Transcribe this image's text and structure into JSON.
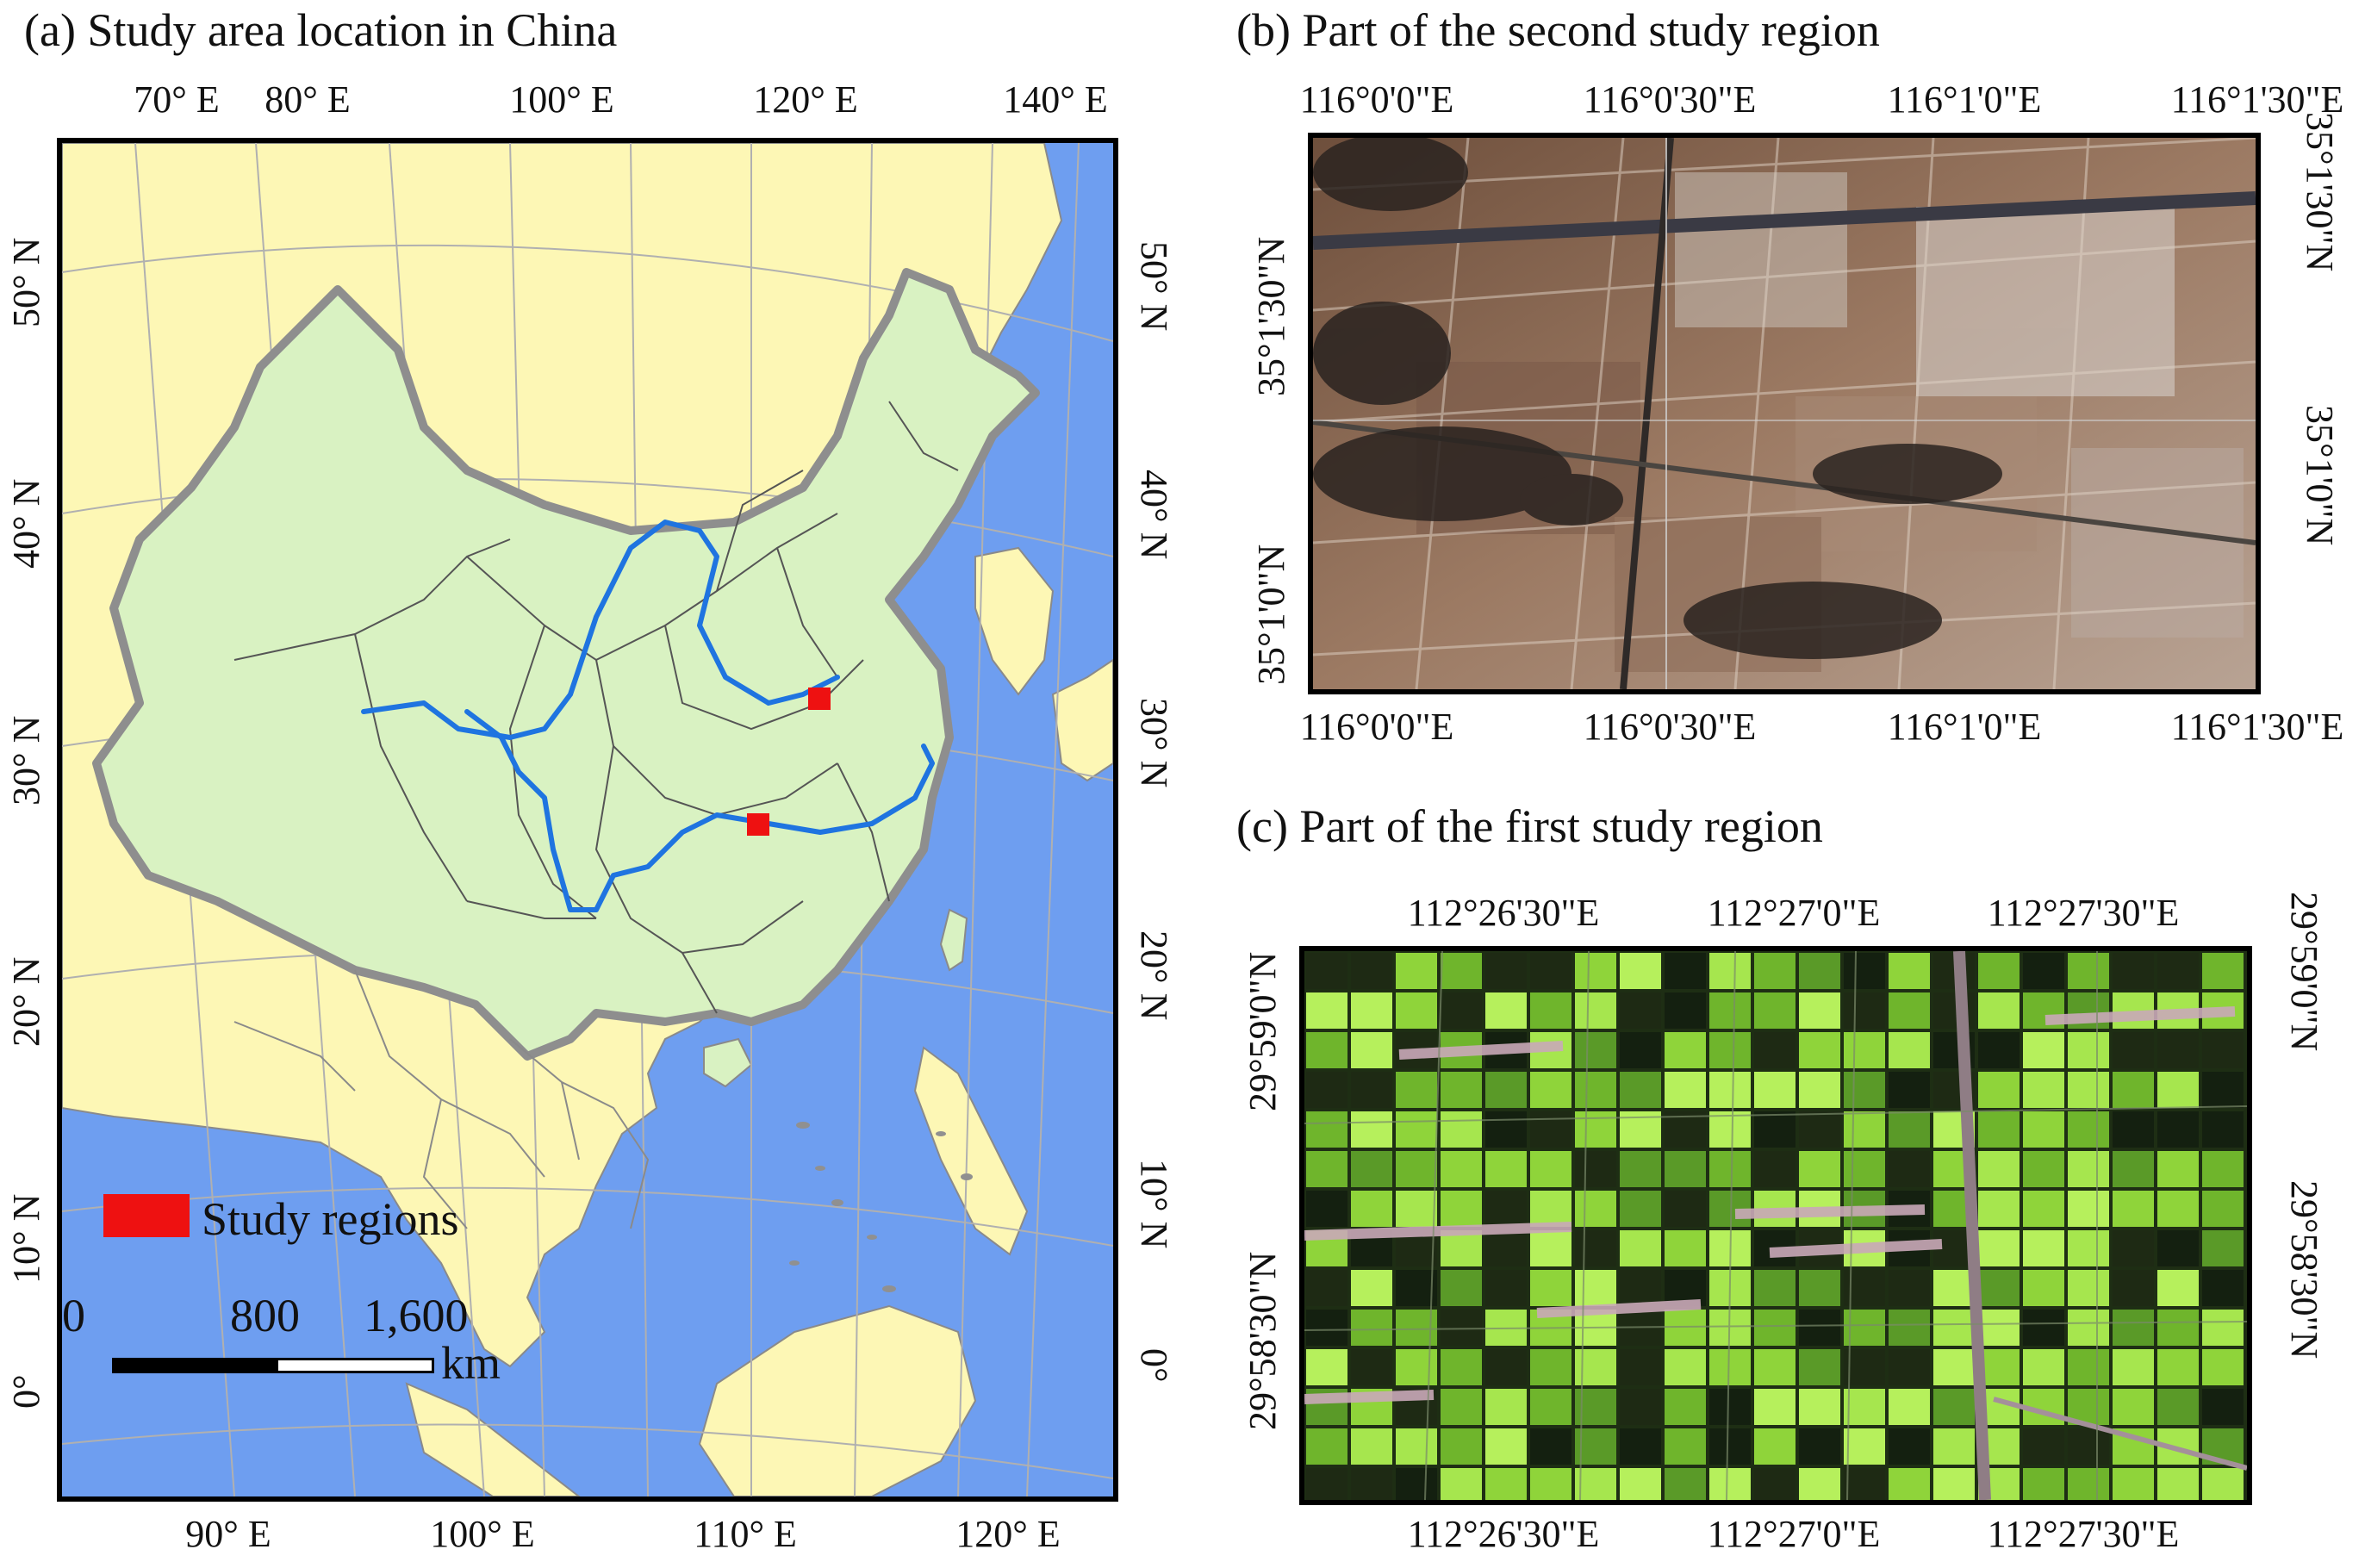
{
  "panel_a": {
    "title": "(a) Study area location in China",
    "top_lon_labels": [
      "70° E",
      "80° E",
      "100° E",
      "120° E",
      "140° E"
    ],
    "bottom_lon_labels": [
      "90° E",
      "100° E",
      "110° E",
      "120° E"
    ],
    "left_lat_labels": [
      "50° N",
      "40° N",
      "30° N",
      "20° N",
      "10° N",
      "0°"
    ],
    "right_lat_labels": [
      "50° N",
      "40° N",
      "30° N",
      "20° N",
      "10° N",
      "0°"
    ],
    "legend_label": "Study regions",
    "scale_labels": [
      "0",
      "800",
      "1,600"
    ],
    "scale_unit": "km",
    "colors": {
      "land": "#fdf7b5",
      "china": "#d9f2c2",
      "ocean": "#6e9ef0",
      "river": "#1f74e0",
      "study": "#ee1111",
      "border": "#909090"
    }
  },
  "panel_b": {
    "title": "(b) Part of the second study region",
    "top_lon_labels": [
      "116°0'0\"E",
      "116°0'30\"E",
      "116°1'0\"E",
      "116°1'30\"E"
    ],
    "bottom_lon_labels": [
      "116°0'0\"E",
      "116°0'30\"E",
      "116°1'0\"E",
      "116°1'30\"E"
    ],
    "left_lat_labels": [
      "35°1'30\"N",
      "35°1'0\"N"
    ],
    "right_lat_labels": [
      "35°1'30\"N",
      "35°1'0\"N"
    ]
  },
  "panel_c": {
    "title": "(c) Part of the first study region",
    "top_lon_labels": [
      "112°26'30\"E",
      "112°27'0\"E",
      "112°27'30\"E"
    ],
    "bottom_lon_labels": [
      "112°26'30\"E",
      "112°27'0\"E",
      "112°27'30\"E"
    ],
    "left_lat_labels": [
      "29°59'0\"N",
      "29°58'30\"N"
    ],
    "right_lat_labels": [
      "29°59'0\"N",
      "29°58'30\"N"
    ]
  }
}
